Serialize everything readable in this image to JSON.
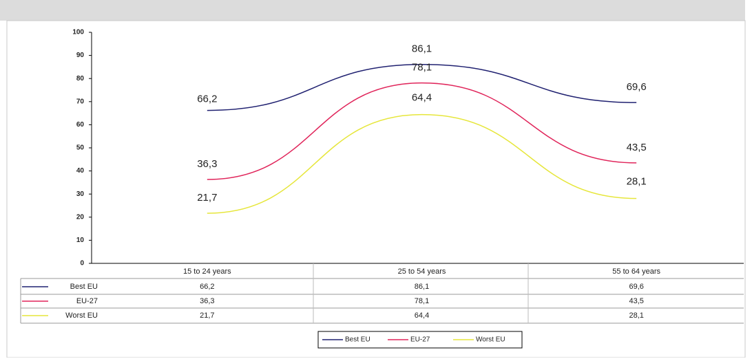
{
  "chart_data": {
    "type": "line",
    "categories": [
      "15 to 24 years",
      "25 to 54 years",
      "55 to 64 years"
    ],
    "series": [
      {
        "name": "Best EU",
        "color": "#1f2070",
        "values": [
          66.2,
          86.1,
          69.6
        ],
        "value_labels": [
          "66,2",
          "86,1",
          "69,6"
        ]
      },
      {
        "name": "EU-27",
        "color": "#e0245a",
        "values": [
          36.3,
          78.1,
          43.5
        ],
        "value_labels": [
          "36,3",
          "78,1",
          "43,5"
        ]
      },
      {
        "name": "Worst EU",
        "color": "#e6e63a",
        "values": [
          21.7,
          64.4,
          28.1
        ],
        "value_labels": [
          "21,7",
          "64,4",
          "28,1"
        ]
      }
    ],
    "ylim": [
      0,
      100
    ],
    "yticks": [
      0,
      10,
      20,
      30,
      40,
      50,
      60,
      70,
      80,
      90,
      100
    ]
  }
}
